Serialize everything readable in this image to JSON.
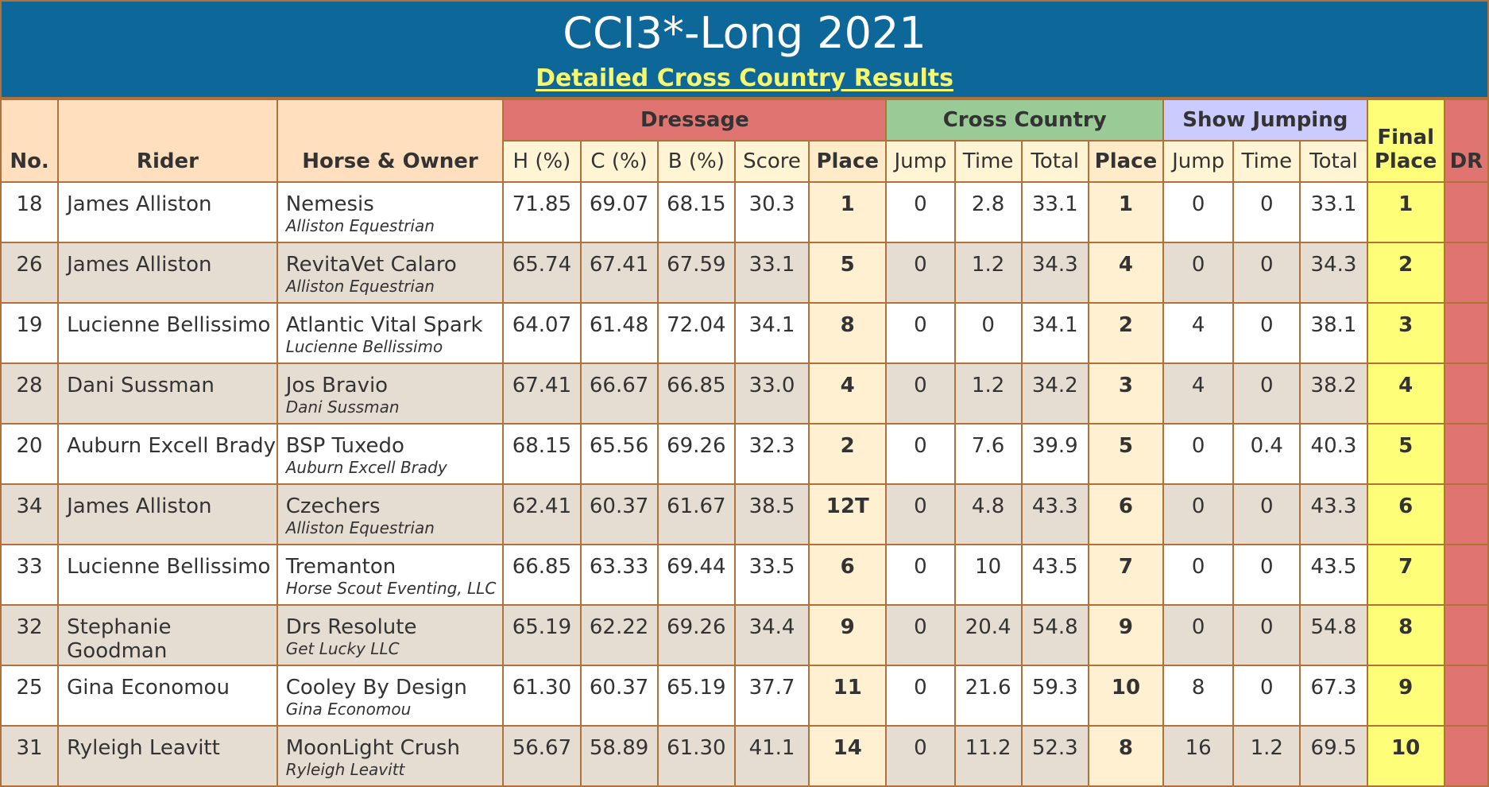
{
  "header": {
    "title": "CCI3*-Long 2021",
    "subtitle": "Detailed Cross Country Results"
  },
  "columns": {
    "no": "No.",
    "rider": "Rider",
    "horse": "Horse & Owner",
    "dressage": "Dressage",
    "cross_country": "Cross Country",
    "show_jumping": "Show Jumping",
    "final_place_line1": "Final",
    "final_place_line2": "Place",
    "dr": "DR",
    "d_h": "H (%)",
    "d_c": "C (%)",
    "d_b": "B (%)",
    "d_score": "Score",
    "d_place": "Place",
    "xc_jump": "Jump",
    "xc_time": "Time",
    "xc_total": "Total",
    "xc_place": "Place",
    "sj_jump": "Jump",
    "sj_time": "Time",
    "sj_total": "Total"
  },
  "rows": [
    {
      "no": "18",
      "rider": "James Alliston",
      "horse": "Nemesis",
      "owner": "Alliston Equestrian",
      "h": "71.85",
      "c": "69.07",
      "b": "68.15",
      "score": "30.3",
      "d_place": "1",
      "xc_jump": "0",
      "xc_time": "2.8",
      "xc_total": "33.1",
      "xc_place": "1",
      "sj_jump": "0",
      "sj_time": "0",
      "sj_total": "33.1",
      "final": "1"
    },
    {
      "no": "26",
      "rider": "James Alliston",
      "horse": "RevitaVet Calaro",
      "owner": "Alliston Equestrian",
      "h": "65.74",
      "c": "67.41",
      "b": "67.59",
      "score": "33.1",
      "d_place": "5",
      "xc_jump": "0",
      "xc_time": "1.2",
      "xc_total": "34.3",
      "xc_place": "4",
      "sj_jump": "0",
      "sj_time": "0",
      "sj_total": "34.3",
      "final": "2"
    },
    {
      "no": "19",
      "rider": "Lucienne Bellissimo",
      "horse": "Atlantic Vital Spark",
      "owner": "Lucienne Bellissimo",
      "h": "64.07",
      "c": "61.48",
      "b": "72.04",
      "score": "34.1",
      "d_place": "8",
      "xc_jump": "0",
      "xc_time": "0",
      "xc_total": "34.1",
      "xc_place": "2",
      "sj_jump": "4",
      "sj_time": "0",
      "sj_total": "38.1",
      "final": "3"
    },
    {
      "no": "28",
      "rider": "Dani Sussman",
      "horse": "Jos Bravio",
      "owner": "Dani Sussman",
      "h": "67.41",
      "c": "66.67",
      "b": "66.85",
      "score": "33.0",
      "d_place": "4",
      "xc_jump": "0",
      "xc_time": "1.2",
      "xc_total": "34.2",
      "xc_place": "3",
      "sj_jump": "4",
      "sj_time": "0",
      "sj_total": "38.2",
      "final": "4"
    },
    {
      "no": "20",
      "rider": "Auburn Excell Brady",
      "horse": "BSP Tuxedo",
      "owner": "Auburn Excell Brady",
      "h": "68.15",
      "c": "65.56",
      "b": "69.26",
      "score": "32.3",
      "d_place": "2",
      "xc_jump": "0",
      "xc_time": "7.6",
      "xc_total": "39.9",
      "xc_place": "5",
      "sj_jump": "0",
      "sj_time": "0.4",
      "sj_total": "40.3",
      "final": "5"
    },
    {
      "no": "34",
      "rider": "James Alliston",
      "horse": "Czechers",
      "owner": "Alliston Equestrian",
      "h": "62.41",
      "c": "60.37",
      "b": "61.67",
      "score": "38.5",
      "d_place": "12T",
      "xc_jump": "0",
      "xc_time": "4.8",
      "xc_total": "43.3",
      "xc_place": "6",
      "sj_jump": "0",
      "sj_time": "0",
      "sj_total": "43.3",
      "final": "6"
    },
    {
      "no": "33",
      "rider": "Lucienne Bellissimo",
      "horse": "Tremanton",
      "owner": "Horse Scout Eventing, LLC",
      "h": "66.85",
      "c": "63.33",
      "b": "69.44",
      "score": "33.5",
      "d_place": "6",
      "xc_jump": "0",
      "xc_time": "10",
      "xc_total": "43.5",
      "xc_place": "7",
      "sj_jump": "0",
      "sj_time": "0",
      "sj_total": "43.5",
      "final": "7"
    },
    {
      "no": "32",
      "rider": "Stephanie Goodman",
      "horse": "Drs Resolute",
      "owner": "Get Lucky LLC",
      "h": "65.19",
      "c": "62.22",
      "b": "69.26",
      "score": "34.4",
      "d_place": "9",
      "xc_jump": "0",
      "xc_time": "20.4",
      "xc_total": "54.8",
      "xc_place": "9",
      "sj_jump": "0",
      "sj_time": "0",
      "sj_total": "54.8",
      "final": "8"
    },
    {
      "no": "25",
      "rider": "Gina Economou",
      "horse": "Cooley By Design",
      "owner": "Gina Economou",
      "h": "61.30",
      "c": "60.37",
      "b": "65.19",
      "score": "37.7",
      "d_place": "11",
      "xc_jump": "0",
      "xc_time": "21.6",
      "xc_total": "59.3",
      "xc_place": "10",
      "sj_jump": "8",
      "sj_time": "0",
      "sj_total": "67.3",
      "final": "9"
    },
    {
      "no": "31",
      "rider": "Ryleigh Leavitt",
      "horse": "MoonLight Crush",
      "owner": "Ryleigh Leavitt",
      "h": "56.67",
      "c": "58.89",
      "b": "61.30",
      "score": "41.1",
      "d_place": "14",
      "xc_jump": "0",
      "xc_time": "11.2",
      "xc_total": "52.3",
      "xc_place": "8",
      "sj_jump": "16",
      "sj_time": "1.2",
      "sj_total": "69.5",
      "final": "10"
    }
  ]
}
